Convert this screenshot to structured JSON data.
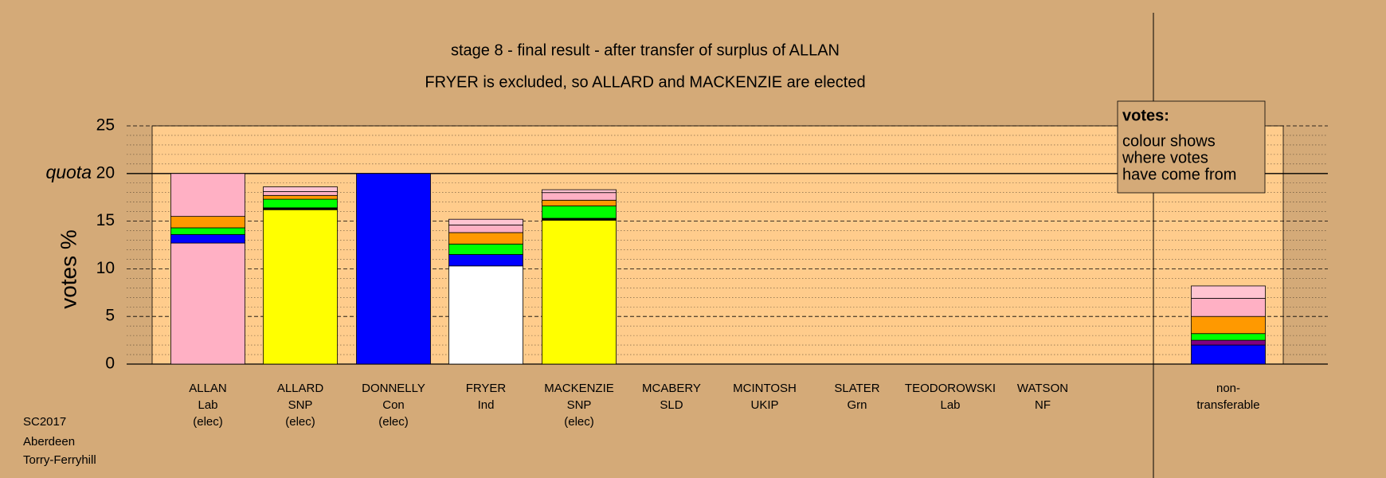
{
  "chart_data": {
    "type": "stacked_bar",
    "title": "stage 8 - final result - after transfer of surplus of ALLAN",
    "subtitle": "FRYER is excluded, so ALLARD and MACKENZIE are elected",
    "y_label": "votes %",
    "quota_label": "quota",
    "quota": 20,
    "categories": [
      [
        "ALLAN",
        "Lab",
        "(elec)"
      ],
      [
        "ALLARD",
        "SNP",
        "(elec)"
      ],
      [
        "DONNELLY",
        "Con",
        "(elec)"
      ],
      [
        "FRYER",
        "Ind"
      ],
      [
        "MACKENZIE",
        "SNP",
        "(elec)"
      ],
      [
        "MCABERY",
        "SLD"
      ],
      [
        "MCINTOSH",
        "UKIP"
      ],
      [
        "SLATER",
        "Grn"
      ],
      [
        "TEODOROWSKI",
        "Lab"
      ],
      [
        "WATSON",
        "NF"
      ],
      [
        "non-",
        "transferable"
      ]
    ],
    "series": [
      {
        "colors": [
          "#ffb0c4",
          "#ffff00",
          "#0000ff",
          "#ffffff",
          "#ffff00",
          "#ffff00",
          "#800080",
          "#00ff00",
          "#ffb0c4",
          "#800000",
          "#0000ff"
        ],
        "values": [
          12.7,
          16.2,
          20,
          10.3,
          15.1,
          0,
          0,
          0,
          0,
          0,
          2.0
        ]
      },
      {
        "color": "#0000ff",
        "values": [
          0.9,
          0,
          0,
          1.2,
          0,
          0,
          0,
          0,
          0,
          0,
          0
        ]
      },
      {
        "color": "#000000",
        "values": [
          0,
          0.2,
          0,
          0,
          0.2,
          0,
          0,
          0,
          0,
          0,
          0
        ]
      },
      {
        "color": "#800080",
        "values": [
          0,
          0,
          0,
          0,
          0,
          0,
          0,
          0,
          0,
          0,
          0.5
        ]
      },
      {
        "color": "#00ff00",
        "values": [
          0.7,
          0.9,
          0,
          1.1,
          1.3,
          0,
          0,
          0,
          0,
          0,
          0.7
        ]
      },
      {
        "color": "#ff9900",
        "values": [
          1.2,
          0.4,
          0,
          1.2,
          0.6,
          0,
          0,
          0,
          0,
          0,
          1.8
        ]
      },
      {
        "color": "#ffb0c4",
        "values": [
          4.5,
          0.4,
          0,
          0.8,
          0.8,
          0,
          0,
          0,
          0,
          0,
          1.9
        ]
      },
      {
        "color": "#ffc4d2",
        "values": [
          0,
          0.5,
          0,
          0.6,
          0.3,
          0,
          0,
          0,
          0,
          0,
          1.3
        ]
      }
    ],
    "ylim": [
      0,
      25
    ],
    "yticks": [
      0,
      5,
      10,
      15,
      20,
      25
    ],
    "minor_yticks": [
      1,
      2,
      3,
      4,
      6,
      7,
      8,
      9,
      11,
      12,
      13,
      14,
      16,
      17,
      18,
      19,
      21,
      22,
      23,
      24
    ],
    "legend_title": "votes:",
    "legend_lines": [
      "colour shows",
      "where votes",
      "have come from"
    ],
    "footer": [
      "SC2017",
      "Aberdeen",
      "Torry-Ferryhill"
    ]
  }
}
